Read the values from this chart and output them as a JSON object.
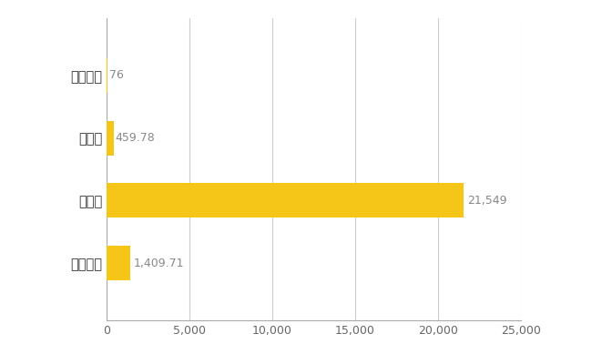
{
  "categories": [
    "全国平均",
    "県最大",
    "県平均",
    "訓子府町"
  ],
  "values": [
    1409.71,
    21549,
    459.78,
    76
  ],
  "bar_color": "#F5C518",
  "bar_labels": [
    "1,409.71",
    "21,549",
    "459.78",
    "76"
  ],
  "xlim": [
    0,
    25000
  ],
  "xticks": [
    0,
    5000,
    10000,
    15000,
    20000,
    25000
  ],
  "grid_color": "#cccccc",
  "background_color": "#ffffff",
  "label_fontsize": 10.5,
  "tick_fontsize": 9,
  "bar_height": 0.55
}
